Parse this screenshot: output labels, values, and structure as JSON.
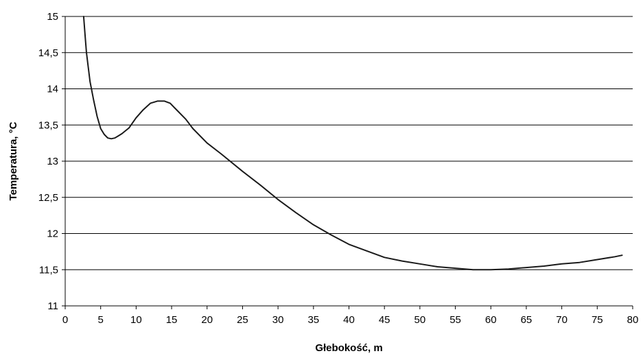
{
  "chart_data": {
    "type": "line",
    "xlabel": "Głebokość, m",
    "ylabel": "Temperatura, °C",
    "xlim": [
      0,
      80
    ],
    "ylim": [
      11,
      15
    ],
    "x_ticks": [
      "0",
      "5",
      "10",
      "15",
      "20",
      "25",
      "30",
      "35",
      "40",
      "45",
      "50",
      "55",
      "60",
      "65",
      "70",
      "75",
      "80"
    ],
    "y_ticks": [
      "11",
      "11,5",
      "12",
      "12,5",
      "13",
      "13,5",
      "14",
      "14,5",
      "15"
    ],
    "grid": "horizontal",
    "legend": "none",
    "line_color": "#1a1a1a",
    "series": [
      {
        "x": [
          2.6,
          2.8,
          3.0,
          3.5,
          4.0,
          4.5,
          5.0,
          5.5,
          6.0,
          6.5,
          7.0,
          7.5,
          8.0,
          9.0,
          10.0,
          11.0,
          12.0,
          13.0,
          14.0,
          14.8,
          15.5,
          17.0,
          18.0,
          20.0,
          22.0,
          25.0,
          27.5,
          30.0,
          32.5,
          35.0,
          37.5,
          40.0,
          42.5,
          45.0,
          47.5,
          50.0,
          52.5,
          55.0,
          57.5,
          60.0,
          62.5,
          65.0,
          67.5,
          70.0,
          72.5,
          75.0,
          77.5,
          78.5
        ],
        "y": [
          15.0,
          14.75,
          14.5,
          14.1,
          13.85,
          13.62,
          13.45,
          13.37,
          13.32,
          13.31,
          13.32,
          13.35,
          13.38,
          13.46,
          13.6,
          13.71,
          13.8,
          13.83,
          13.83,
          13.8,
          13.73,
          13.58,
          13.45,
          13.25,
          13.1,
          12.86,
          12.67,
          12.47,
          12.29,
          12.12,
          11.98,
          11.85,
          11.76,
          11.67,
          11.62,
          11.58,
          11.54,
          11.52,
          11.5,
          11.5,
          11.51,
          11.53,
          11.55,
          11.58,
          11.6,
          11.64,
          11.68,
          11.7
        ]
      }
    ]
  }
}
